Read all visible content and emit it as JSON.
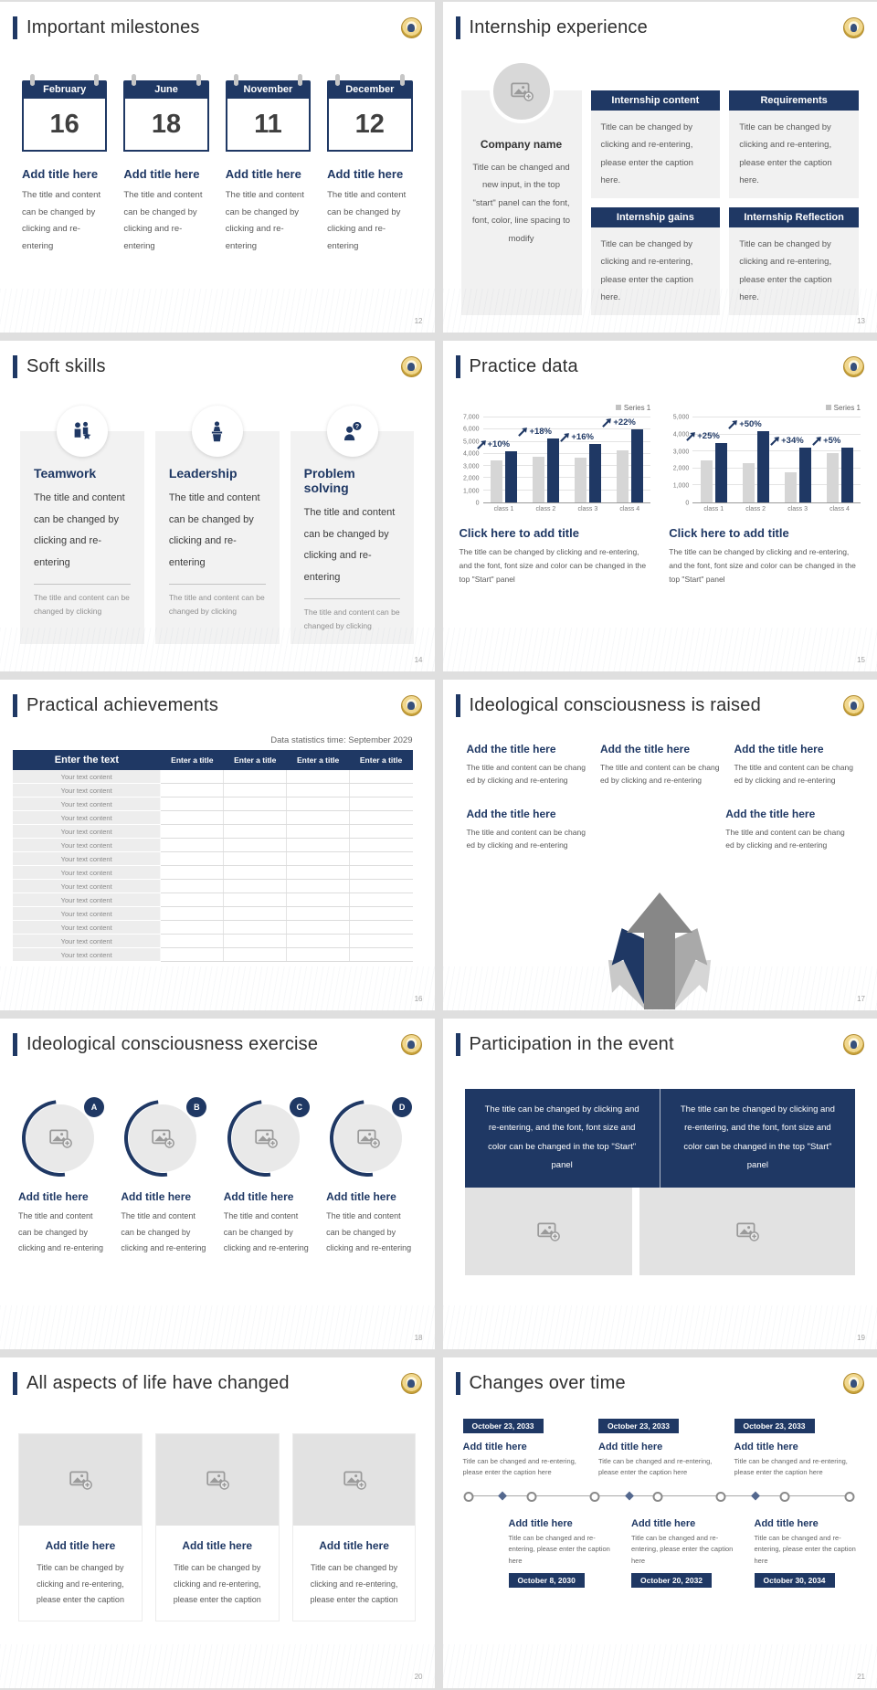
{
  "accent_color": "#1f3864",
  "s12": {
    "number": "12",
    "title": "Important milestones",
    "items": [
      {
        "month": "February",
        "day": "16",
        "heading": "Add title here",
        "caption": "The title and content can be changed by clicking and re-entering"
      },
      {
        "month": "June",
        "day": "18",
        "heading": "Add title here",
        "caption": "The title and content can be changed by clicking and re-entering"
      },
      {
        "month": "November",
        "day": "11",
        "heading": "Add title here",
        "caption": "The title and content can be changed by clicking and re-entering"
      },
      {
        "month": "December",
        "day": "12",
        "heading": "Add title here",
        "caption": "The title and content can be changed by clicking and re-entering"
      }
    ]
  },
  "s13": {
    "number": "13",
    "title": "Internship experience",
    "company": {
      "name": "Company name",
      "caption": "Title can be changed and new input, in the top \"start\" panel can the font, font, color, line spacing to modify"
    },
    "boxes": [
      {
        "title": "Internship content",
        "caption": "Title can be changed by clicking and re-entering, please enter the caption here."
      },
      {
        "title": "Requirements",
        "caption": "Title can be changed by clicking and re-entering, please enter the caption here."
      },
      {
        "title": "Internship gains",
        "caption": "Title can be changed by clicking and re-entering, please enter the caption here."
      },
      {
        "title": "Internship Reflection",
        "caption": "Title can be changed by clicking and re-entering, please enter the caption here."
      }
    ]
  },
  "s14": {
    "number": "14",
    "title": "Soft skills",
    "skills": [
      {
        "icon": "teamwork-icon",
        "title": "Teamwork",
        "body": "The title and content can be changed by clicking and re-entering",
        "footer": "The title and content can be changed by clicking"
      },
      {
        "icon": "leadership-icon",
        "title": "Leadership",
        "body": "The title and content can be changed by clicking and re-entering",
        "footer": "The title and content can be changed by clicking"
      },
      {
        "icon": "problem-solving-icon",
        "title": "Problem solving",
        "body": "The title and content can be changed by clicking and re-entering",
        "footer": "The title and content can be changed by clicking"
      }
    ]
  },
  "s15": {
    "number": "15",
    "title": "Practice data"
  },
  "s16": {
    "number": "16",
    "title": "Practical achievements",
    "note": "Data statistics time: September 2029",
    "table": {
      "headers": [
        "Enter the text",
        "Enter a title",
        "Enter a title",
        "Enter a title",
        "Enter a title"
      ],
      "row_label": "Your text content",
      "row_count": 14
    }
  },
  "s17": {
    "number": "17",
    "title": "Ideological consciousness is raised",
    "heading": "Add the title here",
    "caption": "The title and content can be chang ed by clicking and re-entering"
  },
  "s18": {
    "number": "18",
    "title": "Ideological consciousness exercise",
    "items": [
      {
        "badge": "A",
        "heading": "Add title here",
        "caption": "The title and content can be changed by clicking and re-entering"
      },
      {
        "badge": "B",
        "heading": "Add title here",
        "caption": "The title and content can be changed by clicking and re-entering"
      },
      {
        "badge": "C",
        "heading": "Add title here",
        "caption": "The title and content can be changed by clicking and re-entering"
      },
      {
        "badge": "D",
        "heading": "Add title here",
        "caption": "The title and content can be changed by clicking and re-entering"
      }
    ]
  },
  "s19": {
    "number": "19",
    "title": "Participation in the event",
    "banner_left": "The title can be changed by clicking and re-entering, and the font, font size and color can be changed in the top \"Start\" panel",
    "banner_right": "The title can be changed by clicking and re-entering, and the font, font size and color can be changed in the top \"Start\" panel"
  },
  "s20": {
    "number": "20",
    "title": "All aspects of life have changed",
    "cards": [
      {
        "heading": "Add title here",
        "caption": "Title can be changed by clicking and re-entering, please enter the caption"
      },
      {
        "heading": "Add title here",
        "caption": "Title can be changed by clicking and re-entering, please enter the caption"
      },
      {
        "heading": "Add title here",
        "caption": "Title can be changed by clicking and re-entering, please enter the caption"
      }
    ]
  },
  "s21": {
    "number": "21",
    "title": "Changes over time",
    "top": [
      {
        "date": "October 23, 2033",
        "heading": "Add title here",
        "caption": "Title can be changed and re-entering, please enter the caption here"
      },
      {
        "date": "October 23, 2033",
        "heading": "Add title here",
        "caption": "Title can be changed and re-entering, please enter the caption here"
      },
      {
        "date": "October 23, 2033",
        "heading": "Add title here",
        "caption": "Title can be changed and re-entering, please enter the caption here"
      }
    ],
    "bottom": [
      {
        "date": "October 8, 2030",
        "heading": "Add title here",
        "caption": "Title can be changed and re-entering, please enter the caption here"
      },
      {
        "date": "October 20, 2032",
        "heading": "Add title here",
        "caption": "Title can be changed and re-entering, please enter the caption here"
      },
      {
        "date": "October 30, 2034",
        "heading": "Add title here",
        "caption": "Title can be changed and re-entering, please enter the caption here"
      }
    ]
  },
  "chart_data": [
    {
      "type": "bar",
      "title": "Click here to add title",
      "caption": "The title can be changed by clicking and re-entering, and the font, font size and color can be changed in the top \"Start\" panel",
      "categories": [
        "class 1",
        "class 2",
        "class 3",
        "class 4"
      ],
      "series": [
        {
          "name": "",
          "color": "#d6d6d6",
          "values": [
            3500,
            3800,
            3700,
            4300
          ]
        },
        {
          "name": "Series 1",
          "color": "#1f3864",
          "values": [
            4200,
            5300,
            4800,
            6000
          ]
        }
      ],
      "growth_labels": [
        "+10%",
        "+18%",
        "+16%",
        "+22%"
      ],
      "legend": "Series 1",
      "legend_position": "top-right",
      "grid": true,
      "ylim": [
        0,
        7000
      ],
      "yticks": [
        "0",
        "1,000",
        "2,000",
        "3,000",
        "4,000",
        "5,000",
        "6,000",
        "7,000"
      ]
    },
    {
      "type": "bar",
      "title": "Click here to add title",
      "caption": "The title can be changed by clicking and re-entering, and the font, font size and color can be changed in the top \"Start\" panel",
      "categories": [
        "class 1",
        "class 2",
        "class 3",
        "class 4"
      ],
      "series": [
        {
          "name": "",
          "color": "#d6d6d6",
          "values": [
            2450,
            2300,
            1800,
            2900
          ]
        },
        {
          "name": "Series 1",
          "color": "#1f3864",
          "values": [
            3500,
            4200,
            3200,
            3200
          ]
        }
      ],
      "growth_labels": [
        "+25%",
        "+50%",
        "+34%",
        "+5%"
      ],
      "legend": "Series 1",
      "legend_position": "top-right",
      "grid": true,
      "ylim": [
        0,
        5000
      ],
      "yticks": [
        "0",
        "1,000",
        "2,000",
        "3,000",
        "4,000",
        "5,000"
      ]
    }
  ]
}
